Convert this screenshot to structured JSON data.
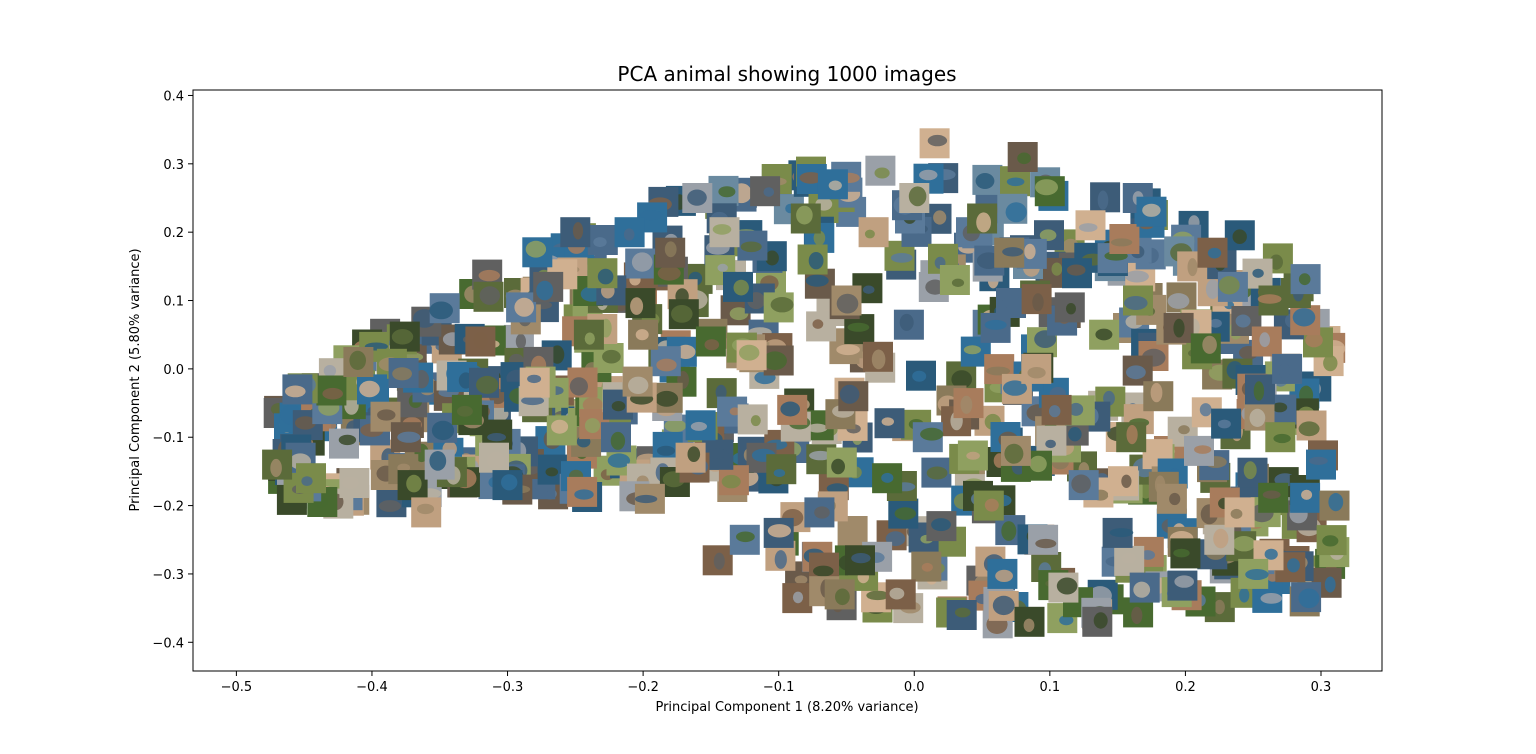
{
  "chart_data": {
    "type": "scatter",
    "title": "PCA animal showing 1000 images",
    "xlabel": "Principal Component 1 (8.20% variance)",
    "ylabel": "Principal Component 2 (5.80% variance)",
    "xlim": [
      -0.532,
      0.345
    ],
    "ylim": [
      -0.442,
      0.408
    ],
    "x_ticks": [
      -0.5,
      -0.4,
      -0.3,
      -0.2,
      -0.1,
      0.0,
      0.1,
      0.2,
      0.3
    ],
    "x_tick_labels": [
      "−0.5",
      "−0.4",
      "−0.3",
      "−0.2",
      "−0.1",
      "0.0",
      "0.1",
      "0.2",
      "0.3"
    ],
    "y_ticks": [
      -0.4,
      -0.3,
      -0.2,
      -0.1,
      0.0,
      0.1,
      0.2,
      0.3,
      0.4
    ],
    "y_tick_labels": [
      "−0.4",
      "−0.3",
      "−0.2",
      "−0.1",
      "0.0",
      "0.1",
      "0.2",
      "0.3",
      "0.4"
    ],
    "grid": false,
    "marker": "image thumbnails",
    "points_shown": 1000,
    "thumbnail_palette": [
      "#5b6b3a",
      "#7a8b4a",
      "#4a6a8a",
      "#2f6f9a",
      "#8a7a5a",
      "#a08a6a",
      "#6a5a4a",
      "#3a4a2a",
      "#c0a080",
      "#9aa0a8",
      "#486a30",
      "#7c6048",
      "#b8b0a0",
      "#2a5a7a",
      "#5a7a9a",
      "#d0b090",
      "#606060",
      "#8fa060",
      "#3d5c78",
      "#a87c5c"
    ],
    "sample_points": [
      [
        -0.47,
        -0.14
      ],
      [
        -0.445,
        -0.16
      ],
      [
        -0.455,
        -0.03
      ],
      [
        -0.4,
        -0.03
      ],
      [
        -0.41,
        0.01
      ],
      [
        -0.39,
        -0.07
      ],
      [
        -0.375,
        -0.1
      ],
      [
        -0.37,
        -0.17
      ],
      [
        -0.36,
        -0.21
      ],
      [
        -0.35,
        -0.14
      ],
      [
        -0.33,
        -0.06
      ],
      [
        -0.32,
        0.04
      ],
      [
        -0.31,
        -0.13
      ],
      [
        -0.3,
        -0.17
      ],
      [
        -0.29,
        0.09
      ],
      [
        -0.28,
        -0.02
      ],
      [
        -0.27,
        0.12
      ],
      [
        -0.26,
        -0.09
      ],
      [
        -0.25,
        0.2
      ],
      [
        -0.245,
        -0.18
      ],
      [
        -0.24,
        0.05
      ],
      [
        -0.23,
        0.14
      ],
      [
        -0.22,
        -0.1
      ],
      [
        -0.21,
        0.2
      ],
      [
        -0.2,
        0.05
      ],
      [
        -0.195,
        -0.19
      ],
      [
        -0.18,
        0.17
      ],
      [
        -0.17,
        0.08
      ],
      [
        -0.165,
        -0.13
      ],
      [
        -0.16,
        0.25
      ],
      [
        -0.15,
        0.04
      ],
      [
        -0.145,
        -0.28
      ],
      [
        -0.14,
        0.2
      ],
      [
        -0.13,
        0.12
      ],
      [
        -0.125,
        -0.25
      ],
      [
        -0.12,
        0.02
      ],
      [
        -0.11,
        0.26
      ],
      [
        -0.1,
        0.09
      ],
      [
        -0.1,
        -0.24
      ],
      [
        -0.09,
        -0.06
      ],
      [
        -0.08,
        0.22
      ],
      [
        -0.075,
        0.16
      ],
      [
        -0.07,
        -0.21
      ],
      [
        -0.06,
        0.27
      ],
      [
        -0.055,
        -0.33
      ],
      [
        -0.05,
        0.1
      ],
      [
        -0.045,
        -0.04
      ],
      [
        -0.04,
        -0.28
      ],
      [
        -0.03,
        0.2
      ],
      [
        -0.025,
        0.29
      ],
      [
        -0.02,
        -0.16
      ],
      [
        -0.01,
        -0.33
      ],
      [
        0.0,
        0.25
      ],
      [
        0.005,
        -0.01
      ],
      [
        0.01,
        -0.1
      ],
      [
        0.015,
        0.33
      ],
      [
        0.02,
        -0.23
      ],
      [
        0.03,
        0.13
      ],
      [
        0.035,
        -0.36
      ],
      [
        0.04,
        -0.05
      ],
      [
        0.05,
        0.22
      ],
      [
        0.055,
        -0.2
      ],
      [
        0.06,
        0.06
      ],
      [
        0.065,
        -0.3
      ],
      [
        0.07,
        0.17
      ],
      [
        0.075,
        -0.12
      ],
      [
        0.08,
        0.31
      ],
      [
        0.085,
        -0.37
      ],
      [
        0.09,
        0.0
      ],
      [
        0.095,
        -0.25
      ],
      [
        0.1,
        0.26
      ],
      [
        0.105,
        -0.06
      ],
      [
        0.11,
        -0.32
      ],
      [
        0.12,
        0.14
      ],
      [
        0.125,
        -0.17
      ],
      [
        0.13,
        0.21
      ],
      [
        0.135,
        -0.37
      ],
      [
        0.14,
        0.05
      ],
      [
        0.15,
        -0.24
      ],
      [
        0.155,
        0.19
      ],
      [
        0.16,
        -0.1
      ],
      [
        0.165,
        0.1
      ],
      [
        0.17,
        -0.32
      ],
      [
        0.175,
        0.23
      ],
      [
        0.18,
        -0.04
      ],
      [
        0.19,
        -0.19
      ],
      [
        0.195,
        0.06
      ],
      [
        0.2,
        -0.27
      ],
      [
        0.205,
        0.15
      ],
      [
        0.21,
        -0.12
      ],
      [
        0.215,
        0.03
      ],
      [
        0.22,
        0.17
      ],
      [
        0.225,
        -0.25
      ],
      [
        0.23,
        -0.08
      ],
      [
        0.235,
        0.12
      ],
      [
        0.24,
        -0.21
      ],
      [
        0.245,
        0.07
      ],
      [
        0.25,
        -0.3
      ],
      [
        0.255,
        -0.03
      ],
      [
        0.26,
        0.04
      ],
      [
        0.265,
        0.1
      ],
      [
        0.27,
        -0.1
      ],
      [
        0.275,
        0.0
      ],
      [
        0.3,
        -0.14
      ],
      [
        0.31,
        -0.2
      ]
    ]
  }
}
